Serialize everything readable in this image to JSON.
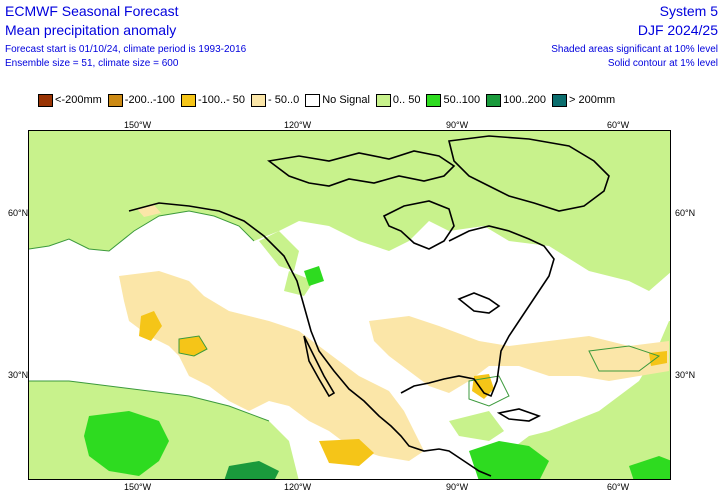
{
  "header": {
    "title": "ECMWF Seasonal Forecast",
    "subtitle": "Mean precipitation anomaly",
    "forecast_info": "Forecast start is 01/10/24, climate period is 1993-2016",
    "ensemble_info": "Ensemble size = 51, climate size = 600",
    "system": "System 5",
    "season": "DJF 2024/25",
    "significance_shaded": "Shaded areas significant at 10% level",
    "significance_contour": "Solid contour at 1% level"
  },
  "legend": [
    {
      "label": "<-200mm",
      "color": "#993404"
    },
    {
      "label": "-200..-100",
      "color": "#cc8a14"
    },
    {
      "label": "-100..- 50",
      "color": "#f5c518"
    },
    {
      "label": "- 50..0",
      "color": "#fbe6a8"
    },
    {
      "label": "No Signal",
      "color": "#ffffff"
    },
    {
      "label": "0.. 50",
      "color": "#c8f28c"
    },
    {
      "label": "50..100",
      "color": "#2edb20"
    },
    {
      "label": "100..200",
      "color": "#1a9a3c"
    },
    {
      "label": "> 200mm",
      "color": "#0b6e6e"
    }
  ],
  "map": {
    "lon_ticks": [
      "150°W",
      "120°W",
      "90°W",
      "60°W"
    ],
    "lat_ticks": [
      "60°N",
      "30°N"
    ]
  },
  "colors": {
    "text": "#0000dd",
    "coast": "#000000",
    "contour": "#3c9a3c"
  }
}
